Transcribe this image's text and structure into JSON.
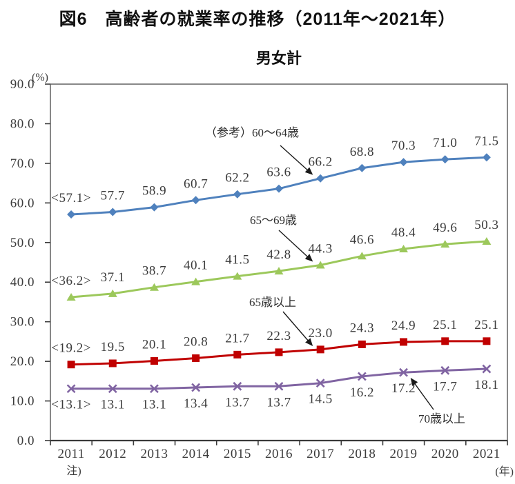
{
  "figure": {
    "title": "図6　高齢者の就業率の推移（2011年～2021年）",
    "note_label": "注)",
    "x_axis_unit": "(年)",
    "y_axis_unit": "(%)"
  },
  "chart_data": {
    "type": "line",
    "title": "男女計",
    "x": [
      "2011",
      "2012",
      "2013",
      "2014",
      "2015",
      "2016",
      "2017",
      "2018",
      "2019",
      "2020",
      "2021"
    ],
    "xlabel": "(年)",
    "ylabel": "(%)",
    "note": "注)",
    "ylim": [
      0,
      90
    ],
    "ytick_step": 10,
    "yticks": [
      "0.0",
      "10.0",
      "20.0",
      "30.0",
      "40.0",
      "50.0",
      "60.0",
      "70.0",
      "80.0",
      "90.0"
    ],
    "grid": false,
    "legend_position": "none (arrow annotations label each line)",
    "series": [
      {
        "name": "（参考）60～64歳",
        "color": "#4F81BD",
        "marker": "diamond",
        "label_side": "above",
        "first_label": "<57.1>",
        "values": [
          57.1,
          57.7,
          58.9,
          60.7,
          62.2,
          63.6,
          66.2,
          68.8,
          70.3,
          71.0,
          71.5
        ]
      },
      {
        "name": "65～69歳",
        "color": "#9CC85B",
        "marker": "triangle",
        "label_side": "above",
        "first_label": "<36.2>",
        "values": [
          36.2,
          37.1,
          38.7,
          40.1,
          41.5,
          42.8,
          44.3,
          46.6,
          48.4,
          49.6,
          50.3
        ]
      },
      {
        "name": "65歳以上",
        "color": "#C00000",
        "marker": "square",
        "label_side": "above",
        "first_label": "<19.2>",
        "values": [
          19.2,
          19.5,
          20.1,
          20.8,
          21.7,
          22.3,
          23.0,
          24.3,
          24.9,
          25.1,
          25.1
        ]
      },
      {
        "name": "70歳以上",
        "color": "#8064A2",
        "marker": "x",
        "label_side": "below",
        "first_label": "<13.1>",
        "values": [
          13.1,
          13.1,
          13.1,
          13.4,
          13.7,
          13.7,
          14.5,
          16.2,
          17.2,
          17.7,
          18.1
        ]
      }
    ],
    "annotations": [
      {
        "text": "（参考）60～64歳",
        "series": 0,
        "point": 6
      },
      {
        "text": "65～69歳",
        "series": 1,
        "point": 6
      },
      {
        "text": "65歳以上",
        "series": 2,
        "point": 6
      },
      {
        "text": "70歳以上",
        "series": 3,
        "point": 8
      }
    ]
  }
}
